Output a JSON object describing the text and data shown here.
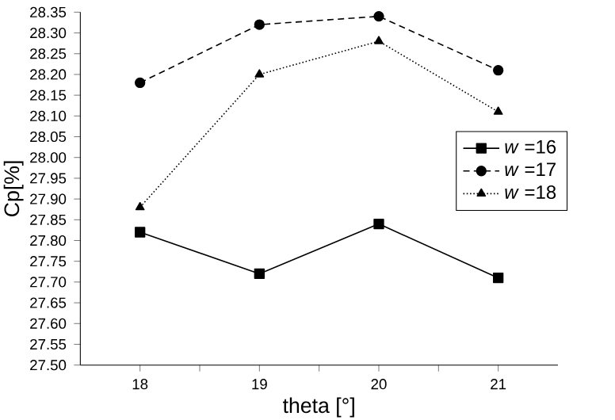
{
  "chart_data": {
    "type": "line",
    "xlabel": "theta [°]",
    "ylabel": "Cp[%]",
    "x": [
      18,
      19,
      20,
      21
    ],
    "xlim": [
      17.5,
      21.5
    ],
    "xticks": [
      18,
      {
        "value": 18.5,
        "label": null
      },
      19,
      {
        "value": 19.5,
        "label": null
      },
      20,
      {
        "value": 20.5,
        "label": null
      },
      21
    ],
    "ylim": [
      27.5,
      28.35
    ],
    "yticks": [
      {
        "value": 27.5,
        "label": "27.50"
      },
      {
        "value": 27.55,
        "label": "27.55"
      },
      {
        "value": 27.6,
        "label": "27.60"
      },
      {
        "value": 27.65,
        "label": "27.65"
      },
      {
        "value": 27.7,
        "label": "27.70"
      },
      {
        "value": 27.75,
        "label": "27.75"
      },
      {
        "value": 27.8,
        "label": "27.80"
      },
      {
        "value": 27.85,
        "label": "27.85"
      },
      {
        "value": 27.9,
        "label": "27.90"
      },
      {
        "value": 27.95,
        "label": "27.95"
      },
      {
        "value": 28.0,
        "label": "28.00"
      },
      {
        "value": 28.05,
        "label": "28.05"
      },
      {
        "value": 28.1,
        "label": "28.10"
      },
      {
        "value": 28.15,
        "label": "28.15"
      },
      {
        "value": 28.2,
        "label": "28.20"
      },
      {
        "value": 28.25,
        "label": "28.25"
      },
      {
        "value": 28.3,
        "label": "28.30"
      },
      {
        "value": 28.35,
        "label": "28.35"
      }
    ],
    "legend": "right",
    "series": [
      {
        "name": "*w* =16",
        "color": "#000000",
        "marker": "square",
        "line_style": "solid",
        "values": [
          27.82,
          27.72,
          27.84,
          27.71
        ]
      },
      {
        "name": "*w* =17",
        "color": "#000000",
        "marker": "circle",
        "line_style": "dashed",
        "values": [
          28.18,
          28.32,
          28.34,
          28.21
        ]
      },
      {
        "name": "*w* =18",
        "color": "#000000",
        "marker": "triangle",
        "line_style": "dotted",
        "values": [
          27.88,
          28.2,
          28.28,
          28.11
        ]
      }
    ]
  }
}
